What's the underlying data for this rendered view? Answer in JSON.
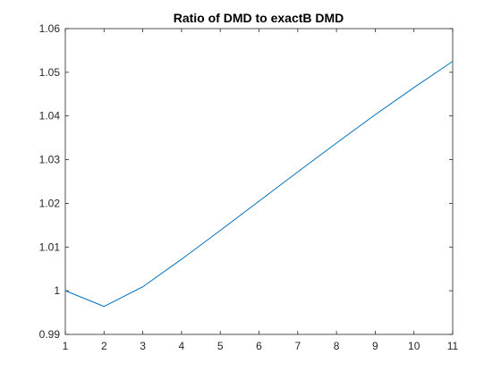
{
  "chart_data": {
    "type": "line",
    "title": "Ratio of DMD to exactB DMD",
    "xlabel": "",
    "ylabel": "",
    "xlim": [
      1,
      11
    ],
    "ylim": [
      0.99,
      1.06
    ],
    "x_ticks": [
      1,
      2,
      3,
      4,
      5,
      6,
      7,
      8,
      9,
      10,
      11
    ],
    "x_tick_labels": [
      "1",
      "2",
      "3",
      "4",
      "5",
      "6",
      "7",
      "8",
      "9",
      "10",
      "11"
    ],
    "y_ticks": [
      0.99,
      1.0,
      1.01,
      1.02,
      1.03,
      1.04,
      1.05,
      1.06
    ],
    "y_tick_labels": [
      "0.99",
      "1",
      "1.01",
      "1.02",
      "1.03",
      "1.04",
      "1.05",
      "1.06"
    ],
    "grid": false,
    "box": true,
    "series": [
      {
        "color": "#0072bd",
        "x": [
          1,
          2,
          3,
          4,
          5,
          6,
          7,
          8,
          9,
          10,
          11
        ],
        "y": [
          1.0,
          0.9964,
          1.0009,
          1.0072,
          1.0138,
          1.0205,
          1.0272,
          1.0338,
          1.0403,
          1.0465,
          1.0525
        ]
      }
    ]
  }
}
